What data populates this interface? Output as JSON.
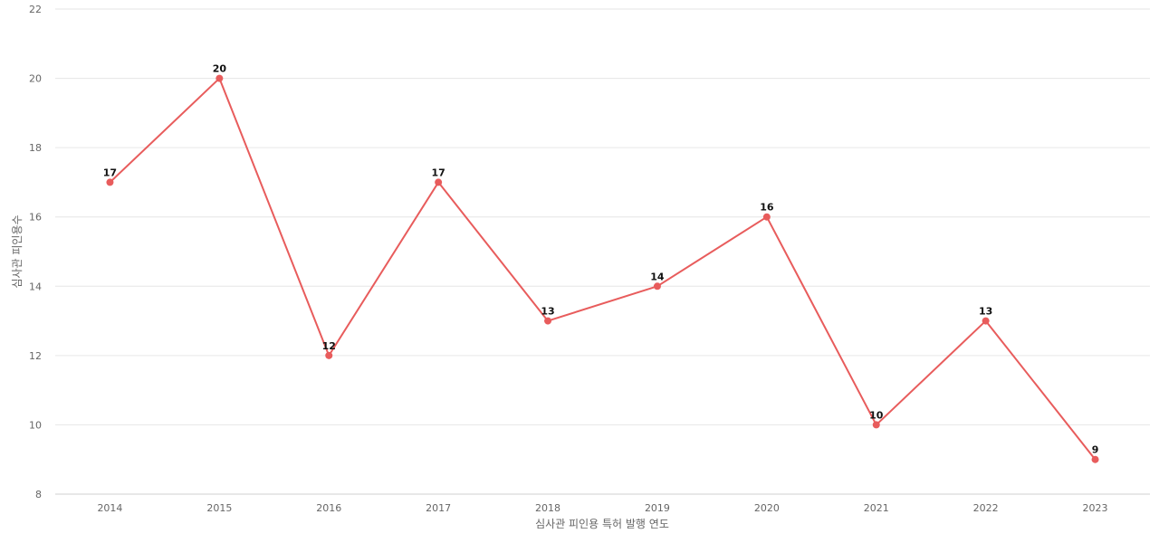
{
  "chart_data": {
    "type": "line",
    "title": "",
    "xlabel": "심사관 피인용 특허 발행 연도",
    "ylabel": "심사관 피인용수",
    "categories": [
      "2014",
      "2015",
      "2016",
      "2017",
      "2018",
      "2019",
      "2020",
      "2021",
      "2022",
      "2023"
    ],
    "series": [
      {
        "values": [
          17,
          20,
          12,
          17,
          13,
          14,
          16,
          10,
          13,
          9
        ],
        "color": "#e85c5c"
      }
    ],
    "ylim": [
      8,
      22
    ],
    "yticks": [
      8,
      10,
      12,
      14,
      16,
      18,
      20,
      22
    ],
    "grid": true,
    "data_labels": true,
    "legend": "none"
  }
}
